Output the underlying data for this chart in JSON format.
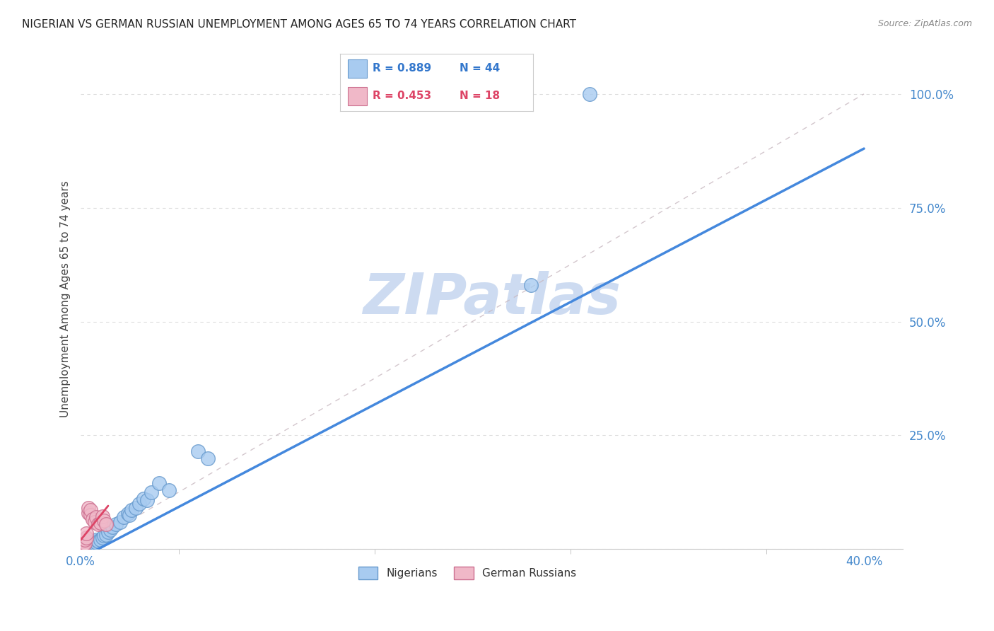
{
  "title": "NIGERIAN VS GERMAN RUSSIAN UNEMPLOYMENT AMONG AGES 65 TO 74 YEARS CORRELATION CHART",
  "source": "Source: ZipAtlas.com",
  "ylabel": "Unemployment Among Ages 65 to 74 years",
  "xlim": [
    0.0,
    0.42
  ],
  "ylim": [
    0.0,
    1.1
  ],
  "nigerian_R": 0.889,
  "nigerian_N": 44,
  "german_russian_R": 0.453,
  "german_russian_N": 18,
  "nigerian_color": "#A8CBF0",
  "nigerian_edge": "#6699CC",
  "german_russian_color": "#F0B8C8",
  "german_russian_edge": "#CC7090",
  "nigerian_line_color": "#4488DD",
  "german_russian_line_color": "#DD4466",
  "diagonal_color": "#C8B8C0",
  "watermark": "ZIPatlas",
  "watermark_color": "#C8D8F0",
  "nigerian_x": [
    0.001,
    0.001,
    0.002,
    0.002,
    0.002,
    0.003,
    0.003,
    0.003,
    0.004,
    0.004,
    0.005,
    0.005,
    0.005,
    0.006,
    0.006,
    0.007,
    0.007,
    0.008,
    0.008,
    0.009,
    0.01,
    0.011,
    0.012,
    0.013,
    0.014,
    0.015,
    0.016,
    0.018,
    0.02,
    0.022,
    0.024,
    0.025,
    0.026,
    0.028,
    0.03,
    0.032,
    0.034,
    0.036,
    0.04,
    0.045,
    0.06,
    0.065,
    0.23,
    0.26
  ],
  "nigerian_y": [
    0.003,
    0.005,
    0.005,
    0.008,
    0.01,
    0.005,
    0.008,
    0.012,
    0.008,
    0.012,
    0.005,
    0.01,
    0.015,
    0.01,
    0.015,
    0.012,
    0.018,
    0.015,
    0.02,
    0.018,
    0.02,
    0.025,
    0.03,
    0.032,
    0.038,
    0.042,
    0.048,
    0.055,
    0.06,
    0.07,
    0.078,
    0.075,
    0.085,
    0.09,
    0.1,
    0.11,
    0.108,
    0.125,
    0.145,
    0.13,
    0.215,
    0.2,
    0.58,
    1.0
  ],
  "german_russian_x": [
    0.001,
    0.001,
    0.002,
    0.002,
    0.003,
    0.003,
    0.004,
    0.004,
    0.005,
    0.005,
    0.006,
    0.007,
    0.008,
    0.009,
    0.01,
    0.011,
    0.012,
    0.013
  ],
  "german_russian_y": [
    0.005,
    0.01,
    0.012,
    0.02,
    0.025,
    0.035,
    0.08,
    0.09,
    0.075,
    0.085,
    0.065,
    0.06,
    0.07,
    0.055,
    0.058,
    0.072,
    0.062,
    0.055
  ],
  "nig_line_x0": 0.0,
  "nig_line_y0": -0.02,
  "nig_line_x1": 0.4,
  "nig_line_y1": 0.88,
  "ger_line_x0": 0.0,
  "ger_line_y0": 0.02,
  "ger_line_x1": 0.014,
  "ger_line_y1": 0.095
}
